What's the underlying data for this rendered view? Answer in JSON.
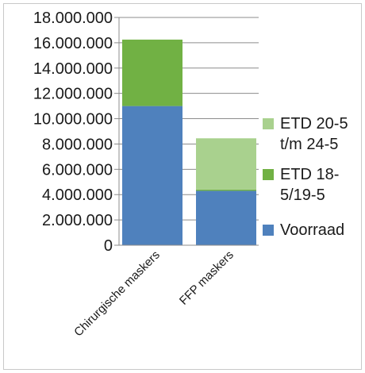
{
  "chart_data": {
    "type": "bar",
    "stacked": true,
    "categories": [
      "Chirurgische maskers",
      "FFP maskers"
    ],
    "series": [
      {
        "name": "Voorraad",
        "values": [
          11000000,
          4300000
        ],
        "color": "#4f81bd"
      },
      {
        "name": "ETD 18-5/19-5",
        "values": [
          5250000,
          100000
        ],
        "color": "#71b144"
      },
      {
        "name": "ETD 20-5 t/m 24-5",
        "values": [
          0,
          4050000
        ],
        "color": "#a9d18e"
      }
    ],
    "legend_labels": [
      [
        "ETD 20-5",
        "t/m 24-5"
      ],
      [
        "ETD 18-",
        "5/19-5"
      ],
      [
        "Voorraad"
      ]
    ],
    "ylim": [
      0,
      18000000
    ],
    "yticks": [
      0,
      2000000,
      4000000,
      6000000,
      8000000,
      10000000,
      12000000,
      14000000,
      16000000,
      18000000
    ],
    "ytick_labels": [
      "0",
      "2.000.000",
      "4.000.000",
      "6.000.000",
      "8.000.000",
      "10.000.000",
      "12.000.000",
      "14.000.000",
      "16.000.000",
      "18.000.000"
    ],
    "grid": true,
    "legend_position": "right",
    "title": "",
    "xlabel": "",
    "ylabel": ""
  }
}
